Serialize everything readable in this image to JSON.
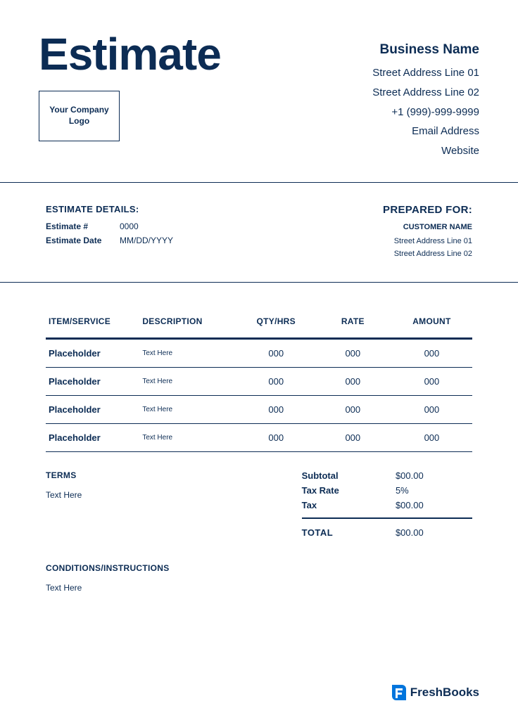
{
  "colors": {
    "primary": "#0c2c54",
    "brand_blue": "#0075dd",
    "background": "#ffffff"
  },
  "header": {
    "title": "Estimate",
    "logo_text": "Your Company Logo",
    "business_name": "Business Name",
    "address_line_1": "Street Address Line 01",
    "address_line_2": "Street Address Line 02",
    "phone": "+1 (999)-999-9999",
    "email": "Email Address",
    "website": "Website"
  },
  "details": {
    "heading": "ESTIMATE DETAILS:",
    "number_label": "Estimate #",
    "number_value": "0000",
    "date_label": "Estimate Date",
    "date_value": "MM/DD/YYYY"
  },
  "prepared_for": {
    "heading": "PREPARED FOR:",
    "customer_name": "CUSTOMER NAME",
    "address_line_1": "Street Address Line 01",
    "address_line_2": "Street Address Line 02"
  },
  "table": {
    "columns": [
      "ITEM/SERVICE",
      "DESCRIPTION",
      "QTY/HRS",
      "RATE",
      "AMOUNT"
    ],
    "rows": [
      {
        "item": "Placeholder",
        "desc": "Text Here",
        "qty": "000",
        "rate": "000",
        "amount": "000"
      },
      {
        "item": "Placeholder",
        "desc": "Text Here",
        "qty": "000",
        "rate": "000",
        "amount": "000"
      },
      {
        "item": "Placeholder",
        "desc": "Text Here",
        "qty": "000",
        "rate": "000",
        "amount": "000"
      },
      {
        "item": "Placeholder",
        "desc": "Text Here",
        "qty": "000",
        "rate": "000",
        "amount": "000"
      }
    ]
  },
  "terms": {
    "heading": "TERMS",
    "text": "Text Here"
  },
  "totals": {
    "subtotal_label": "Subtotal",
    "subtotal_value": "$00.00",
    "tax_rate_label": "Tax Rate",
    "tax_rate_value": "5%",
    "tax_label": "Tax",
    "tax_value": "$00.00",
    "total_label": "TOTAL",
    "total_value": "$00.00"
  },
  "conditions": {
    "heading": "CONDITIONS/INSTRUCTIONS",
    "text": "Text Here"
  },
  "brand": {
    "name": "FreshBooks"
  }
}
